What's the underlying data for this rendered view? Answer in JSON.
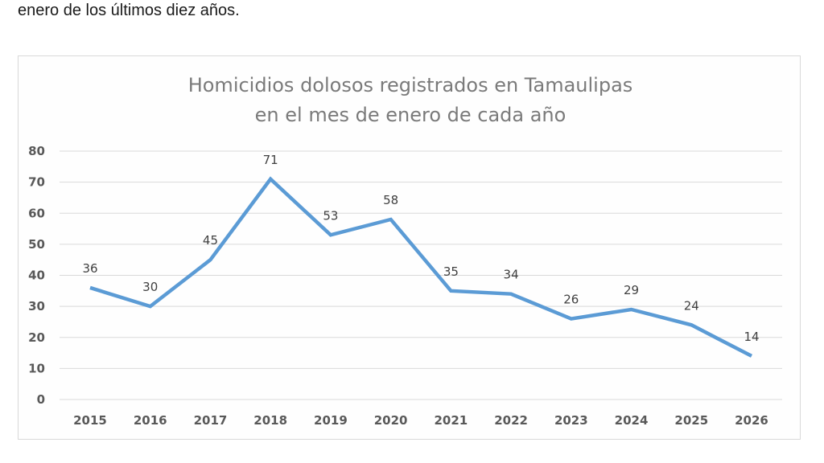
{
  "document": {
    "intro_text": "enero de los últimos diez años."
  },
  "chart_data": {
    "type": "line",
    "title": "Homicidios dolosos registrados en Tamaulipas\nen el mes de enero de cada año",
    "title_lines": [
      "Homicidios dolosos registrados en Tamaulipas",
      "en el mes de enero de cada año"
    ],
    "xlabel": "",
    "ylabel": "",
    "categories": [
      "2015",
      "2016",
      "2017",
      "2018",
      "2019",
      "2020",
      "2021",
      "2022",
      "2023",
      "2024",
      "2025",
      "2026"
    ],
    "series": [
      {
        "name": "Homicidios dolosos",
        "values": [
          36,
          30,
          45,
          71,
          53,
          58,
          35,
          34,
          26,
          29,
          24,
          14
        ],
        "color": "#5b9bd5"
      }
    ],
    "ylim": [
      0,
      80
    ],
    "yticks": [
      0,
      10,
      20,
      30,
      40,
      50,
      60,
      70,
      80
    ],
    "grid": true,
    "legend": "none",
    "data_labels": true
  }
}
